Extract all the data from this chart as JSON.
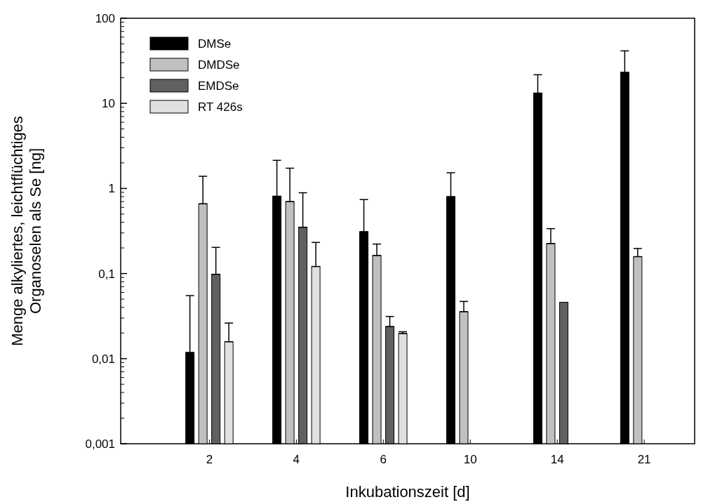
{
  "chart_data": {
    "type": "bar",
    "xlabel": "Inkubationszeit [d]",
    "ylabel": "Menge alkyliertes, leichtflüchtiges\nOrganoselen als Se [ng]",
    "categories": [
      "2",
      "4",
      "6",
      "10",
      "14",
      "21"
    ],
    "log": true,
    "legend": "top left",
    "ylim": [
      0.001,
      100
    ],
    "yticks": [
      {
        "value": 0.001,
        "label": "0,001"
      },
      {
        "value": 0.01,
        "label": "0,01"
      },
      {
        "value": 0.1,
        "label": "0,1"
      },
      1,
      10,
      100
    ],
    "series": [
      {
        "name": "DMSe",
        "color": "#000000",
        "values": [
          0.0118,
          0.81,
          0.31,
          0.8,
          13.2,
          23.1
        ],
        "errors": [
          [
            0.0118,
            0.055
          ],
          [
            0.81,
            2.14
          ],
          [
            0.31,
            0.74
          ],
          [
            0.8,
            1.53
          ],
          [
            13.2,
            21.7
          ],
          [
            23.1,
            41.4
          ]
        ]
      },
      {
        "name": "DMDSe",
        "color": "#c0c0c0",
        "values": [
          0.66,
          0.7,
          0.163,
          0.0356,
          0.225,
          0.158
        ],
        "errors": [
          [
            0.66,
            1.39
          ],
          [
            0.7,
            1.73
          ],
          [
            0.163,
            0.222
          ],
          [
            0.0356,
            0.047
          ],
          [
            0.225,
            0.337
          ],
          [
            0.158,
            0.197
          ]
        ]
      },
      {
        "name": "EMDSe",
        "color": "#606060",
        "values": [
          0.098,
          0.35,
          0.0238,
          null,
          0.046,
          null
        ],
        "errors": [
          [
            0.098,
            0.203
          ],
          [
            0.35,
            0.89
          ],
          [
            0.0238,
            0.0313
          ],
          null,
          null,
          null
        ]
      },
      {
        "name": "RT 426s",
        "color": "#e0e0e0",
        "values": [
          0.0158,
          0.121,
          0.0197,
          null,
          null,
          null
        ],
        "errors": [
          [
            0.0158,
            0.0262
          ],
          [
            0.121,
            0.232
          ],
          [
            0.0197,
            0.0207
          ],
          null,
          null,
          null
        ]
      }
    ]
  }
}
